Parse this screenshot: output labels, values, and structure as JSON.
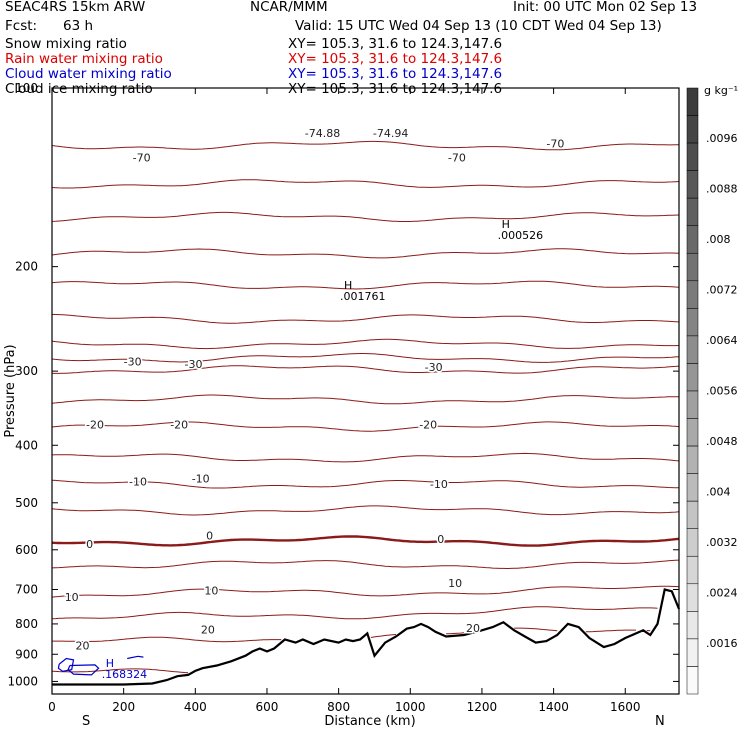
{
  "header": {
    "model": "SEAC4RS 15km ARW",
    "org": "NCAR/MMM",
    "init": "Init: 00 UTC Mon 02 Sep 13",
    "fcst_label": "Fcst:",
    "fcst_value": "63 h",
    "valid": "Valid: 15 UTC Wed 04 Sep 13 (10 CDT Wed 04 Sep 13)"
  },
  "fields": [
    {
      "name": "Snow mixing ratio",
      "xy": "XY= 105.3, 31.6 to 124.3,147.6",
      "color": "#000000"
    },
    {
      "name": "Rain water mixing ratio",
      "xy": "XY= 105.3, 31.6 to 124.3,147.6",
      "color": "#dd0000"
    },
    {
      "name": "Cloud water mixing ratio",
      "xy": "XY= 105.3, 31.6 to 124.3,147.6",
      "color": "#0000cc"
    },
    {
      "name": "Cloud ice mixing ratio",
      "xy": "XY= 105.3, 31.6 to 124.3,147.6",
      "color": "#000000"
    }
  ],
  "colors": {
    "temperature_contour": "#8b1a1a",
    "terrain": "#000000",
    "cloud_water": "#0000cc",
    "frame": "#000000"
  },
  "chart_data": {
    "type": "line",
    "xlabel": "Distance (km)",
    "ylabel": "Pressure (hPa)",
    "xlim": [
      0,
      1750
    ],
    "ylim": [
      1050,
      100
    ],
    "y_scale": "log",
    "x_ticks": [
      0,
      200,
      400,
      600,
      800,
      1000,
      1200,
      1400,
      1600
    ],
    "y_ticks": [
      200,
      300,
      400,
      500,
      600,
      700,
      800,
      900,
      1000
    ],
    "top_tick_label": "100",
    "endpoints": {
      "left": "S",
      "right": "N"
    },
    "colorbar": {
      "units": "g kg⁻¹",
      "labels": [
        ".0096",
        ".0088",
        ".008",
        ".0072",
        ".0064",
        ".0056",
        ".0048",
        ".004",
        ".0032",
        ".0024",
        ".0016"
      ],
      "min": 0.0012,
      "max": 0.01,
      "interval": 0.0004
    },
    "isotherm_labels": [
      {
        "text": "-70",
        "x": 250,
        "p": 131
      },
      {
        "text": "-70",
        "x": 1130,
        "p": 131
      },
      {
        "text": "-70",
        "x": 1405,
        "p": 124
      },
      {
        "text": "-74.88",
        "x": 755,
        "p": 119
      },
      {
        "text": "-74.94",
        "x": 945,
        "p": 119
      },
      {
        "text": "-30",
        "x": 225,
        "p": 289
      },
      {
        "text": "-30",
        "x": 395,
        "p": 292
      },
      {
        "text": "-30",
        "x": 1065,
        "p": 295
      },
      {
        "text": "-20",
        "x": 120,
        "p": 369
      },
      {
        "text": "-20",
        "x": 355,
        "p": 369
      },
      {
        "text": "-20",
        "x": 1050,
        "p": 369
      },
      {
        "text": "-10",
        "x": 240,
        "p": 460
      },
      {
        "text": "-10",
        "x": 415,
        "p": 455
      },
      {
        "text": "-10",
        "x": 1080,
        "p": 465
      },
      {
        "text": "0",
        "x": 105,
        "p": 587
      },
      {
        "text": "0",
        "x": 440,
        "p": 568
      },
      {
        "text": "0",
        "x": 1085,
        "p": 575
      },
      {
        "text": "10",
        "x": 55,
        "p": 720
      },
      {
        "text": "10",
        "x": 445,
        "p": 703
      },
      {
        "text": "10",
        "x": 1125,
        "p": 682
      },
      {
        "text": "20",
        "x": 85,
        "p": 870
      },
      {
        "text": "20",
        "x": 435,
        "p": 818
      },
      {
        "text": "20",
        "x": 1175,
        "p": 812
      }
    ],
    "extrema": [
      {
        "mark": "H",
        "value": ".000526",
        "x": 1255,
        "p": 172,
        "color": "#000000"
      },
      {
        "mark": "H",
        "value": ".001761",
        "x": 815,
        "p": 218,
        "color": "#000000"
      },
      {
        "mark": "H",
        "value": ".168324",
        "x": 150,
        "p": 945,
        "color": "#0000cc"
      }
    ],
    "isotherms": [
      {
        "value": -70,
        "bold": false
      },
      {
        "value": -65,
        "bold": false
      },
      {
        "value": -60,
        "bold": false
      },
      {
        "value": -55,
        "bold": false
      },
      {
        "value": -50,
        "bold": false
      },
      {
        "value": -45,
        "bold": false
      },
      {
        "value": -40,
        "bold": false
      },
      {
        "value": -35,
        "bold": false
      },
      {
        "value": -30,
        "bold": false
      },
      {
        "value": -25,
        "bold": false
      },
      {
        "value": -20,
        "bold": false
      },
      {
        "value": -15,
        "bold": false
      },
      {
        "value": -10,
        "bold": false
      },
      {
        "value": -5,
        "bold": false
      },
      {
        "value": 0,
        "bold": true
      },
      {
        "value": 5,
        "bold": false
      },
      {
        "value": 10,
        "bold": false
      },
      {
        "value": 15,
        "bold": false
      },
      {
        "value": 20,
        "bold": false
      },
      {
        "value": 25,
        "bold": false
      }
    ],
    "terrain": {
      "x": [
        0,
        100,
        200,
        280,
        320,
        350,
        380,
        400,
        420,
        460,
        500,
        540,
        560,
        580,
        600,
        620,
        650,
        680,
        700,
        730,
        760,
        800,
        820,
        840,
        860,
        880,
        900,
        930,
        960,
        990,
        1010,
        1030,
        1050,
        1070,
        1100,
        1150,
        1200,
        1230,
        1260,
        1290,
        1320,
        1350,
        1380,
        1410,
        1440,
        1470,
        1500,
        1540,
        1570,
        1600,
        1630,
        1650,
        1670,
        1690,
        1710,
        1730,
        1750
      ],
      "p": [
        1012,
        1012,
        1012,
        1008,
        995,
        980,
        975,
        960,
        950,
        940,
        925,
        905,
        890,
        880,
        890,
        880,
        850,
        860,
        850,
        865,
        850,
        860,
        850,
        855,
        850,
        830,
        905,
        860,
        840,
        815,
        810,
        800,
        810,
        825,
        840,
        835,
        820,
        810,
        795,
        820,
        840,
        860,
        855,
        835,
        800,
        810,
        845,
        875,
        865,
        845,
        830,
        820,
        835,
        800,
        700,
        705,
        755
      ]
    },
    "cloud_water_regions": [
      {
        "x": [
          20,
          40,
          60,
          55,
          30,
          18,
          20
        ],
        "p": [
          935,
          915,
          920,
          955,
          962,
          950,
          935
        ]
      },
      {
        "x": [
          50,
          120,
          130,
          110,
          60,
          45,
          50
        ],
        "p": [
          940,
          938,
          950,
          975,
          972,
          955,
          940
        ]
      },
      {
        "x": [
          210,
          240,
          255
        ],
        "p": [
          915,
          907,
          910
        ]
      }
    ]
  }
}
